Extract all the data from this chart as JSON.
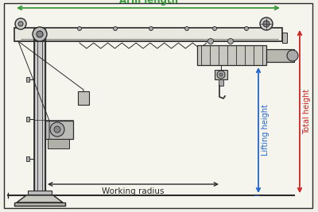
{
  "bg_color": "#f0efe8",
  "lc": "#2a2a2a",
  "lc_light": "#888888",
  "arm_color": "#3a9a3a",
  "total_h_color": "#cc2222",
  "lift_h_color": "#2266cc",
  "fill_light": "#cccccc",
  "fill_mid": "#b8b8b8",
  "fill_dark": "#999999",
  "title": "Arm length",
  "label_working_radius": "Working radius",
  "label_lifting_height": "Lifting height",
  "label_total_height": "Total height",
  "figsize": [
    4.0,
    2.67
  ],
  "dpi": 100
}
